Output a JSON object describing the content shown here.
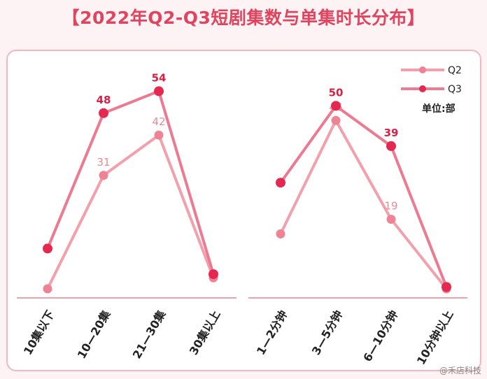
{
  "title": "【2022年Q2-Q3短剧集数与单集时长分布】",
  "unit_label": "单位:部",
  "watermark": "@禾店科技",
  "colors": {
    "q2": "#f2a0ac",
    "q2_point": "#ee8493",
    "q3": "#ec7a90",
    "q3_point": "#e5284f",
    "axis": "#f3a0ad"
  },
  "chart_data": [
    {
      "type": "line",
      "categories": [
        "10集以下",
        "10—20集",
        "21—30集",
        "30集以上"
      ],
      "series": [
        {
          "name": "Q2",
          "values": [
            0,
            31,
            42,
            3
          ],
          "labels": [
            "",
            "31",
            "42",
            ""
          ]
        },
        {
          "name": "Q3",
          "values": [
            11,
            48,
            54,
            4
          ],
          "labels": [
            "",
            "48",
            "54",
            ""
          ]
        }
      ],
      "ylim": [
        0,
        60
      ],
      "legend": "top-right"
    },
    {
      "type": "line",
      "categories": [
        "1—2分钟",
        "3—5分钟",
        "6—10分钟",
        "10分钟以上"
      ],
      "series": [
        {
          "name": "Q2",
          "values": [
            15,
            46,
            19,
            0
          ],
          "labels": [
            "",
            "46",
            "19",
            ""
          ]
        },
        {
          "name": "Q3",
          "values": [
            29,
            50,
            39,
            0.5
          ],
          "labels": [
            "",
            "50",
            "39",
            ""
          ]
        }
      ],
      "ylim": [
        0,
        60
      ],
      "legend": "top-right"
    }
  ]
}
